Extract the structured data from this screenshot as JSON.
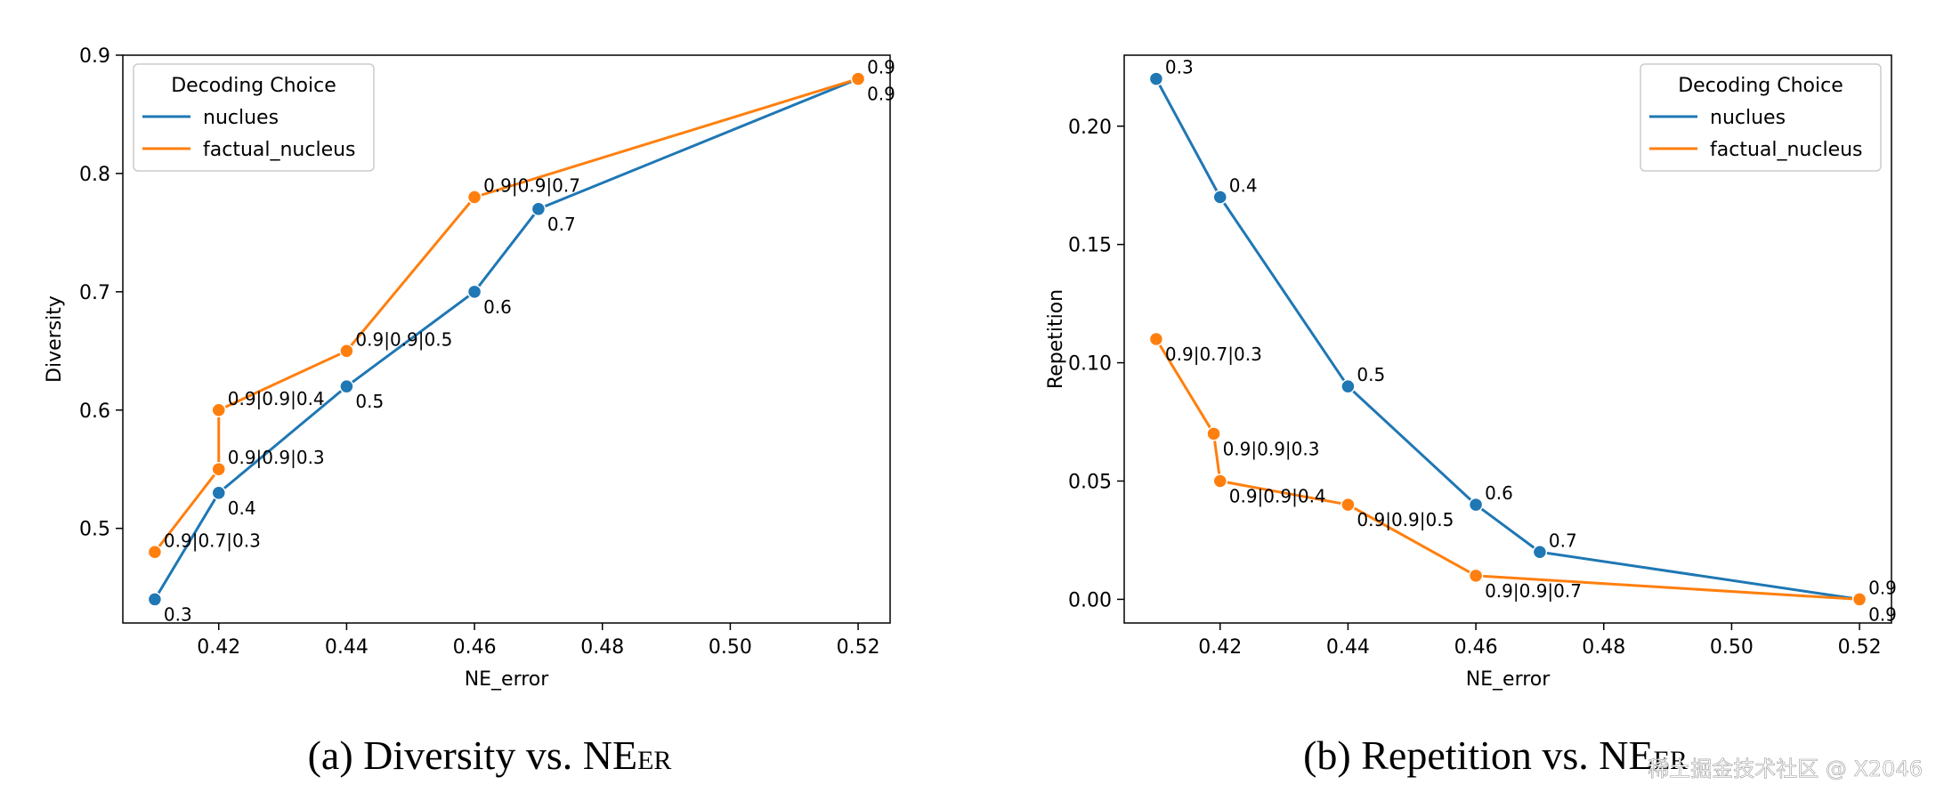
{
  "colors": {
    "nucleus": "#1f77b4",
    "factual": "#ff7f0e",
    "frame": "#000000",
    "legend_border": "#cccccc",
    "text": "#000000",
    "watermark": "#ffffff"
  },
  "captions": {
    "a": {
      "prefix": "(a) Diversity vs. NE",
      "sub": "ER"
    },
    "b": {
      "prefix": "(b) Repetition vs. NE",
      "sub": "ER"
    }
  },
  "watermark": "稀土掘金技术社区 @ X2046",
  "chart_data": [
    {
      "type": "line",
      "xlabel": "NE_error",
      "ylabel": "Diversity",
      "xlim": [
        0.405,
        0.525
      ],
      "ylim": [
        0.42,
        0.9
      ],
      "xticks": [
        "0.42",
        "0.44",
        "0.46",
        "0.48",
        "0.50",
        "0.52"
      ],
      "yticks": [
        "0.5",
        "0.6",
        "0.7",
        "0.8",
        "0.9"
      ],
      "grid": false,
      "legend": {
        "title": "Decoding Choice",
        "placement": "top-left"
      },
      "series": [
        {
          "name": "nuclues",
          "color_key": "nucleus",
          "points": [
            {
              "x": 0.41,
              "y": 0.44,
              "label": "0.3",
              "pos": "below"
            },
            {
              "x": 0.42,
              "y": 0.53,
              "label": "0.4",
              "pos": "below"
            },
            {
              "x": 0.44,
              "y": 0.62,
              "label": "0.5",
              "pos": "below"
            },
            {
              "x": 0.46,
              "y": 0.7,
              "label": "0.6",
              "pos": "below"
            },
            {
              "x": 0.47,
              "y": 0.77,
              "label": "0.7",
              "pos": "below"
            },
            {
              "x": 0.52,
              "y": 0.88,
              "label": "0.9",
              "pos": "below"
            }
          ]
        },
        {
          "name": "factual_nucleus",
          "color_key": "factual",
          "points": [
            {
              "x": 0.41,
              "y": 0.48,
              "label": "0.9|0.7|0.3",
              "pos": "above"
            },
            {
              "x": 0.42,
              "y": 0.55,
              "label": "0.9|0.9|0.3",
              "pos": "above"
            },
            {
              "x": 0.42,
              "y": 0.6,
              "label": "0.9|0.9|0.4",
              "pos": "above"
            },
            {
              "x": 0.44,
              "y": 0.65,
              "label": "0.9|0.9|0.5",
              "pos": "above"
            },
            {
              "x": 0.46,
              "y": 0.78,
              "label": "0.9|0.9|0.7",
              "pos": "above"
            },
            {
              "x": 0.52,
              "y": 0.88,
              "label": "0.9",
              "pos": "above"
            }
          ]
        }
      ]
    },
    {
      "type": "line",
      "xlabel": "NE_error",
      "ylabel": "Repetition",
      "xlim": [
        0.405,
        0.525
      ],
      "ylim": [
        -0.01,
        0.23
      ],
      "xticks": [
        "0.42",
        "0.44",
        "0.46",
        "0.48",
        "0.50",
        "0.52"
      ],
      "yticks": [
        "0.00",
        "0.05",
        "0.10",
        "0.15",
        "0.20"
      ],
      "grid": false,
      "legend": {
        "title": "Decoding Choice",
        "placement": "top-right"
      },
      "series": [
        {
          "name": "nuclues",
          "color_key": "nucleus",
          "points": [
            {
              "x": 0.41,
              "y": 0.22,
              "label": "0.3",
              "pos": "above"
            },
            {
              "x": 0.42,
              "y": 0.17,
              "label": "0.4",
              "pos": "above"
            },
            {
              "x": 0.44,
              "y": 0.09,
              "label": "0.5",
              "pos": "above"
            },
            {
              "x": 0.46,
              "y": 0.04,
              "label": "0.6",
              "pos": "above"
            },
            {
              "x": 0.47,
              "y": 0.02,
              "label": "0.7",
              "pos": "above"
            },
            {
              "x": 0.52,
              "y": 0.0,
              "label": "0.9",
              "pos": "above"
            }
          ]
        },
        {
          "name": "factual_nucleus",
          "color_key": "factual",
          "points": [
            {
              "x": 0.41,
              "y": 0.11,
              "label": "0.9|0.7|0.3",
              "pos": "below"
            },
            {
              "x": 0.419,
              "y": 0.07,
              "label": "0.9|0.9|0.3",
              "pos": "below"
            },
            {
              "x": 0.42,
              "y": 0.05,
              "label": "0.9|0.9|0.4",
              "pos": "below"
            },
            {
              "x": 0.44,
              "y": 0.04,
              "label": "0.9|0.9|0.5",
              "pos": "below"
            },
            {
              "x": 0.46,
              "y": 0.01,
              "label": "0.9|0.9|0.7",
              "pos": "below"
            },
            {
              "x": 0.52,
              "y": 0.0,
              "label": "0.9",
              "pos": "below"
            }
          ]
        }
      ]
    }
  ]
}
